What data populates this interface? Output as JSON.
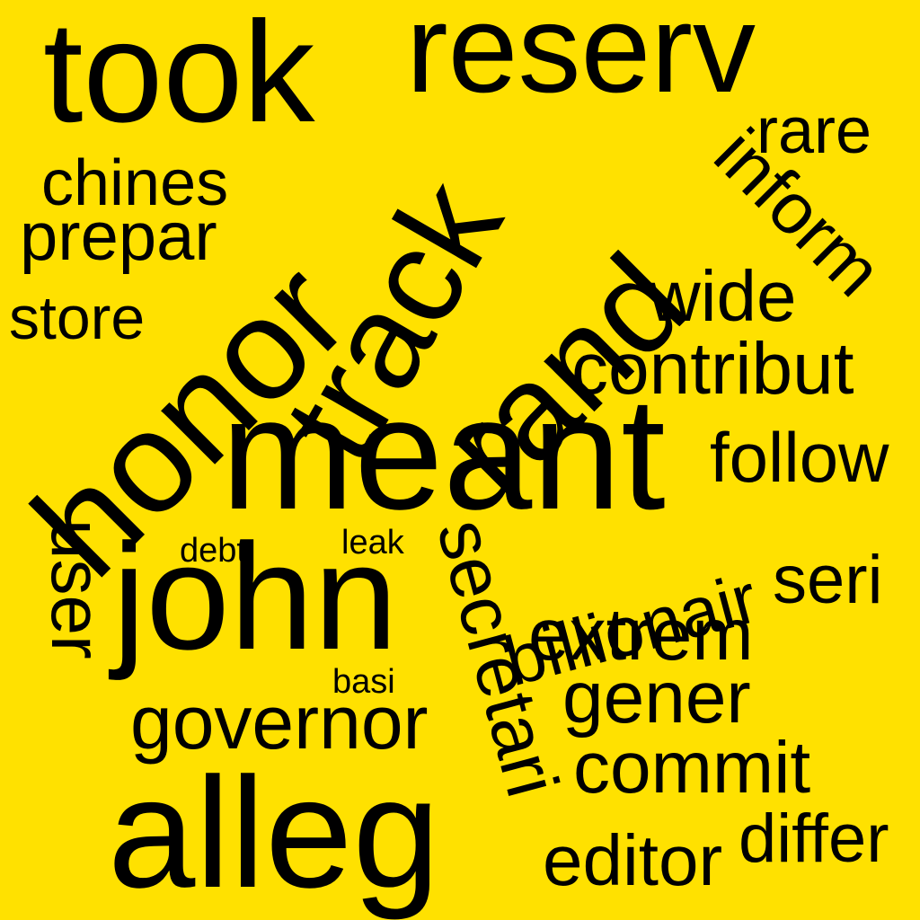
{
  "colors": {
    "background": "#FFE100",
    "text": "#000000"
  },
  "words": {
    "reserv": "reserv",
    "took": "took",
    "rare": "rare",
    "chines": "chines",
    "inform": "inform",
    "honor": "honor",
    "track": "track",
    "rand": "rand",
    "prepar": "prepar",
    "store": "store",
    "wide": "wide",
    "contribut": "contribut",
    "meant": "meant",
    "follow": "follow",
    "user": "user",
    "debt": "debt",
    "leak": "leak",
    "secretari": "secretari",
    "billionair": "billionair",
    "john": "john",
    "seri": "seri",
    "extrem": "extrem",
    "basi": "basi",
    "gener": "gener",
    "governor": "governor",
    "commit": "commit",
    "alleg": "alleg",
    "differ": "differ",
    "editor": "editor"
  }
}
